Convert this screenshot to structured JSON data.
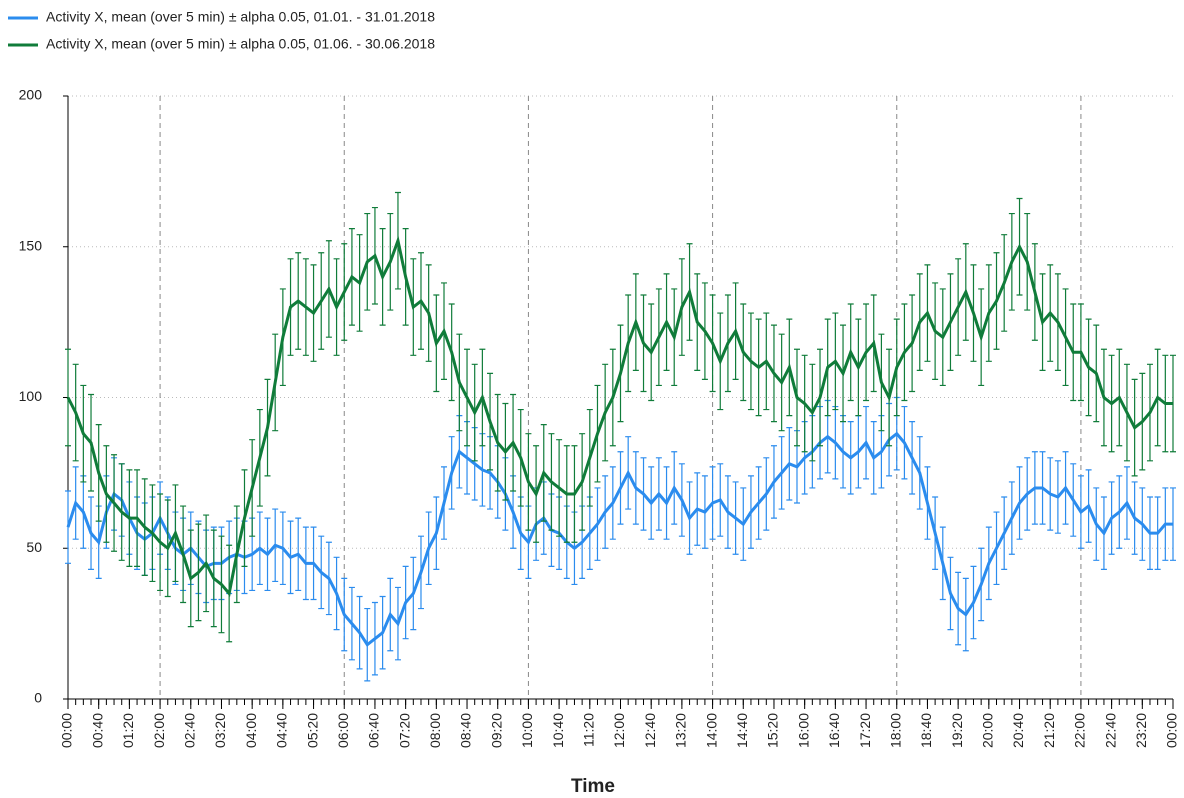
{
  "chart_data": {
    "type": "line",
    "xlabel": "Time",
    "x": [
      0,
      10,
      20,
      30,
      40,
      50,
      60,
      70,
      80,
      90,
      100,
      110,
      120,
      130,
      140,
      150,
      160,
      170,
      180,
      190,
      200,
      210,
      220,
      230,
      240,
      250,
      260,
      270,
      280,
      290,
      300,
      310,
      320,
      330,
      340,
      350,
      360,
      370,
      380,
      390,
      400,
      410,
      420,
      430,
      440,
      450,
      460,
      470,
      480,
      490,
      500,
      510,
      520,
      530,
      540,
      550,
      560,
      570,
      580,
      590,
      600,
      610,
      620,
      630,
      640,
      650,
      660,
      670,
      680,
      690,
      700,
      710,
      720,
      730,
      740,
      750,
      760,
      770,
      780,
      790,
      800,
      810,
      820,
      830,
      840,
      850,
      860,
      870,
      880,
      890,
      900,
      910,
      920,
      930,
      940,
      950,
      960,
      970,
      980,
      990,
      1000,
      1010,
      1020,
      1030,
      1040,
      1050,
      1060,
      1070,
      1080,
      1090,
      1100,
      1110,
      1120,
      1130,
      1140,
      1150,
      1160,
      1170,
      1180,
      1190,
      1200,
      1210,
      1220,
      1230,
      1240,
      1250,
      1260,
      1270,
      1280,
      1290,
      1300,
      1310,
      1320,
      1330,
      1340,
      1350,
      1360,
      1370,
      1380,
      1390,
      1400,
      1410,
      1420,
      1430,
      1440
    ],
    "series": [
      {
        "name": "Activity X, mean (over 5 min) ± alpha 0.05, 01.01. - 31.01.2018",
        "color": "#2b8cee",
        "error": 12,
        "values": [
          57,
          65,
          62,
          55,
          52,
          62,
          68,
          66,
          60,
          55,
          53,
          55,
          60,
          55,
          50,
          48,
          50,
          47,
          44,
          45,
          45,
          47,
          48,
          47,
          48,
          50,
          48,
          51,
          50,
          47,
          48,
          45,
          45,
          42,
          40,
          35,
          28,
          25,
          22,
          18,
          20,
          22,
          28,
          25,
          32,
          35,
          42,
          50,
          55,
          65,
          75,
          82,
          80,
          78,
          76,
          75,
          72,
          68,
          62,
          55,
          52,
          58,
          60,
          56,
          55,
          52,
          50,
          52,
          55,
          58,
          62,
          65,
          70,
          75,
          70,
          68,
          65,
          68,
          65,
          70,
          66,
          60,
          63,
          62,
          65,
          66,
          62,
          60,
          58,
          62,
          65,
          68,
          72,
          75,
          78,
          77,
          80,
          82,
          85,
          87,
          85,
          82,
          80,
          82,
          85,
          80,
          82,
          86,
          88,
          85,
          80,
          75,
          65,
          55,
          45,
          35,
          30,
          28,
          32,
          38,
          45,
          50,
          55,
          60,
          65,
          68,
          70,
          70,
          68,
          67,
          70,
          66,
          62,
          64,
          58,
          55,
          60,
          62,
          65,
          60,
          58,
          55,
          55,
          58,
          58
        ]
      },
      {
        "name": "Activity X, mean (over 5 min) ± alpha 0.05, 01.06. - 30.06.2018",
        "color": "#107c3a",
        "error": 16,
        "values": [
          100,
          95,
          88,
          85,
          75,
          68,
          65,
          62,
          60,
          60,
          57,
          55,
          52,
          50,
          55,
          48,
          40,
          42,
          45,
          40,
          38,
          35,
          48,
          60,
          70,
          80,
          90,
          105,
          120,
          130,
          132,
          130,
          128,
          132,
          136,
          130,
          135,
          140,
          138,
          145,
          147,
          140,
          145,
          152,
          140,
          130,
          132,
          128,
          118,
          122,
          115,
          105,
          100,
          95,
          100,
          92,
          85,
          82,
          85,
          80,
          72,
          68,
          75,
          72,
          70,
          68,
          68,
          72,
          80,
          88,
          95,
          100,
          108,
          118,
          125,
          118,
          115,
          120,
          125,
          120,
          130,
          135,
          125,
          122,
          118,
          112,
          118,
          122,
          115,
          112,
          110,
          112,
          108,
          105,
          110,
          100,
          98,
          95,
          100,
          110,
          112,
          108,
          115,
          110,
          115,
          118,
          105,
          100,
          110,
          115,
          118,
          125,
          128,
          122,
          120,
          125,
          130,
          135,
          128,
          120,
          128,
          132,
          138,
          145,
          150,
          145,
          135,
          125,
          128,
          125,
          120,
          115,
          115,
          110,
          108,
          100,
          98,
          100,
          95,
          90,
          92,
          95,
          100,
          98,
          98
        ]
      }
    ],
    "xlim": [
      0,
      1440
    ],
    "xticks": [
      {
        "value": 0,
        "label": "00:00"
      },
      {
        "value": 40,
        "label": "00:40"
      },
      {
        "value": 80,
        "label": "01:20"
      },
      {
        "value": 120,
        "label": "02:00"
      },
      {
        "value": 160,
        "label": "02:40"
      },
      {
        "value": 200,
        "label": "03:20"
      },
      {
        "value": 240,
        "label": "04:00"
      },
      {
        "value": 280,
        "label": "04:40"
      },
      {
        "value": 320,
        "label": "05:20"
      },
      {
        "value": 360,
        "label": "06:00"
      },
      {
        "value": 400,
        "label": "06:40"
      },
      {
        "value": 440,
        "label": "07:20"
      },
      {
        "value": 480,
        "label": "08:00"
      },
      {
        "value": 520,
        "label": "08:40"
      },
      {
        "value": 560,
        "label": "09:20"
      },
      {
        "value": 600,
        "label": "10:00"
      },
      {
        "value": 640,
        "label": "10:40"
      },
      {
        "value": 680,
        "label": "11:20"
      },
      {
        "value": 720,
        "label": "12:00"
      },
      {
        "value": 760,
        "label": "12:40"
      },
      {
        "value": 800,
        "label": "13:20"
      },
      {
        "value": 840,
        "label": "14:00"
      },
      {
        "value": 880,
        "label": "14:40"
      },
      {
        "value": 920,
        "label": "15:20"
      },
      {
        "value": 960,
        "label": "16:00"
      },
      {
        "value": 1000,
        "label": "16:40"
      },
      {
        "value": 1040,
        "label": "17:20"
      },
      {
        "value": 1080,
        "label": "18:00"
      },
      {
        "value": 1120,
        "label": "18:40"
      },
      {
        "value": 1160,
        "label": "19:20"
      },
      {
        "value": 1200,
        "label": "20:00"
      },
      {
        "value": 1240,
        "label": "20:40"
      },
      {
        "value": 1280,
        "label": "21:20"
      },
      {
        "value": 1320,
        "label": "22:00"
      },
      {
        "value": 1360,
        "label": "22:40"
      },
      {
        "value": 1400,
        "label": "23:20"
      },
      {
        "value": 1440,
        "label": "00:00"
      }
    ],
    "xgrid_lines": [
      120,
      360,
      600,
      840,
      1080,
      1320
    ],
    "ylim": [
      0,
      200
    ],
    "yticks": [
      0,
      50,
      100,
      150,
      200
    ],
    "grid": true,
    "legend": "top-left"
  }
}
